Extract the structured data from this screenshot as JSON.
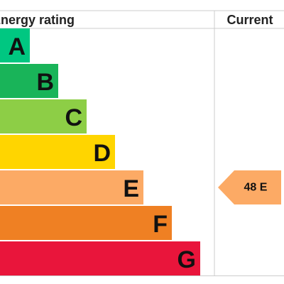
{
  "header": {
    "rating_title": "Energy rating",
    "current_title": "Current"
  },
  "bands": [
    {
      "letter": "A",
      "color": "#00c781"
    },
    {
      "letter": "B",
      "color": "#19b459"
    },
    {
      "letter": "C",
      "color": "#8dce46"
    },
    {
      "letter": "D",
      "color": "#ffd500"
    },
    {
      "letter": "E",
      "color": "#fcaa65"
    },
    {
      "letter": "F",
      "color": "#ef8023"
    },
    {
      "letter": "G",
      "color": "#e9153b"
    }
  ],
  "current": {
    "label": "48 E",
    "band": 4
  }
}
